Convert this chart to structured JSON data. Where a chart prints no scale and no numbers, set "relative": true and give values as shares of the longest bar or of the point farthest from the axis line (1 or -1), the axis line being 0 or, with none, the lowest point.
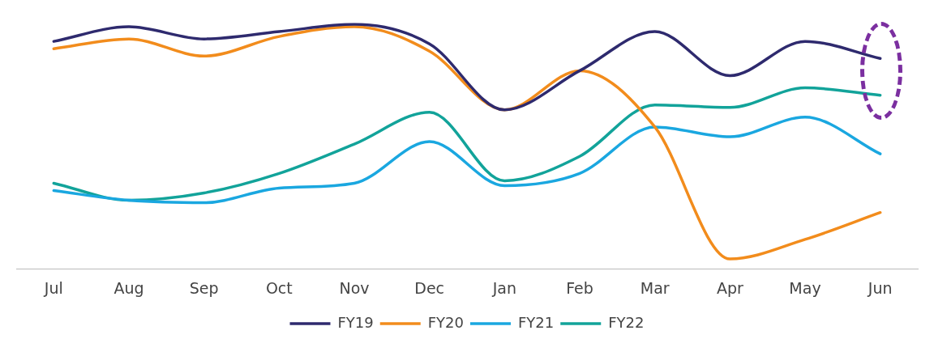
{
  "chart_data": {
    "type": "line",
    "relative": true,
    "categories": [
      "Jul",
      "Aug",
      "Sep",
      "Oct",
      "Nov",
      "Dec",
      "Jan",
      "Feb",
      "Mar",
      "Apr",
      "May",
      "Jun"
    ],
    "series": [
      {
        "name": "FY19",
        "color": "#2e2a6e",
        "values": [
          0.93,
          0.99,
          0.94,
          0.97,
          1.0,
          0.92,
          0.65,
          0.81,
          0.97,
          0.79,
          0.93,
          0.86
        ]
      },
      {
        "name": "FY20",
        "color": "#f28c1c",
        "values": [
          0.9,
          0.94,
          0.87,
          0.95,
          0.99,
          0.89,
          0.65,
          0.81,
          0.58,
          0.04,
          0.12,
          0.23
        ]
      },
      {
        "name": "FY21",
        "color": "#1aa7e0",
        "values": [
          0.32,
          0.28,
          0.27,
          0.33,
          0.35,
          0.52,
          0.34,
          0.39,
          0.58,
          0.54,
          0.62,
          0.47
        ]
      },
      {
        "name": "FY22",
        "color": "#12a39a",
        "values": [
          0.35,
          0.28,
          0.31,
          0.39,
          0.51,
          0.64,
          0.36,
          0.46,
          0.67,
          0.66,
          0.74,
          0.71
        ]
      }
    ],
    "legend": "bottom",
    "marker": "none",
    "line_style": "solid",
    "grid": false
  }
}
